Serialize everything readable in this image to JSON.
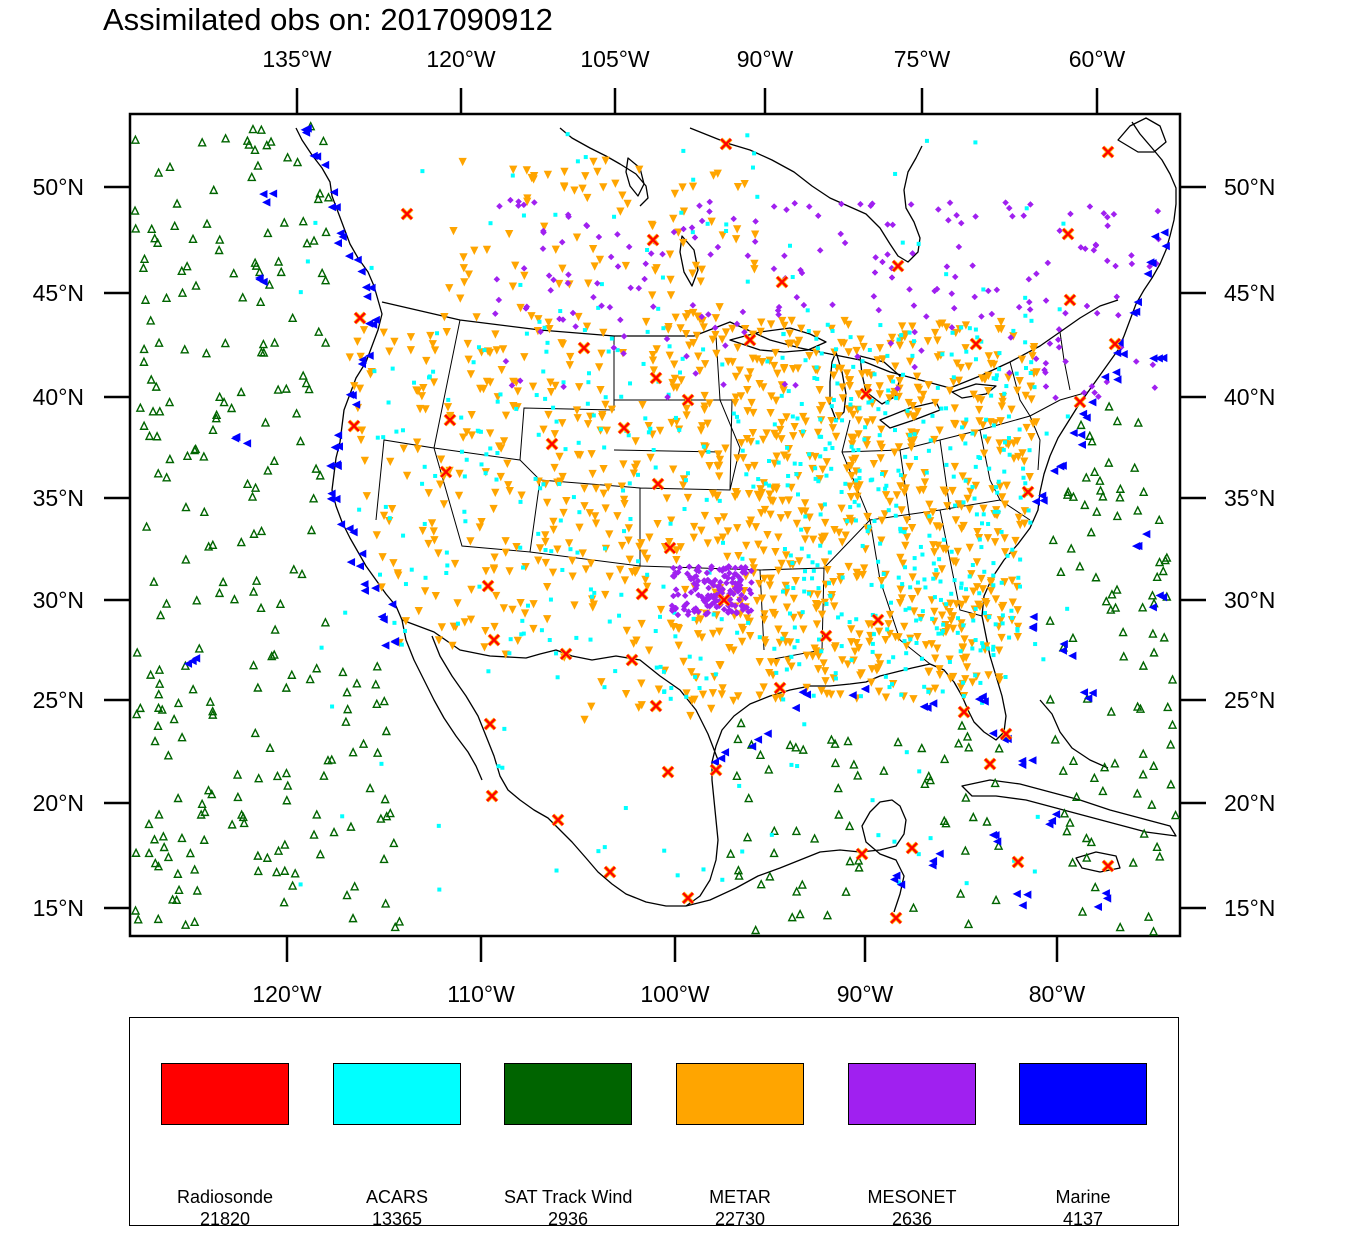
{
  "title": "Assimilated obs on: 2017090912",
  "axes": {
    "top_lon_labels": [
      "135°W",
      "120°W",
      "105°W",
      "90°W",
      "75°W",
      "60°W"
    ],
    "bottom_lon_labels": [
      "120°W",
      "110°W",
      "100°W",
      "90°W",
      "80°W"
    ],
    "lat_labels": [
      "50°N",
      "45°N",
      "40°N",
      "35°N",
      "30°N",
      "25°N",
      "20°N",
      "15°N"
    ]
  },
  "legend": [
    {
      "name": "Radiosonde",
      "count": "21820",
      "color": "#ff0000"
    },
    {
      "name": "ACARS",
      "count": "13365",
      "color": "#00ffff"
    },
    {
      "name": "SAT Track Wind",
      "count": "2936",
      "color": "#006400"
    },
    {
      "name": "METAR",
      "count": "22730",
      "color": "#ffa500"
    },
    {
      "name": "MESONET",
      "count": "2636",
      "color": "#a020f0"
    },
    {
      "name": "Marine",
      "count": "4137",
      "color": "#0000ff"
    }
  ],
  "icons": {
    "radiosonde": "x-marker-icon",
    "acars": "square-marker-icon",
    "sat_track_wind": "triangle-up-marker-icon",
    "metar": "triangle-down-marker-icon",
    "mesonet": "diamond-marker-icon",
    "marine": "triangle-left-marker-icon"
  }
}
